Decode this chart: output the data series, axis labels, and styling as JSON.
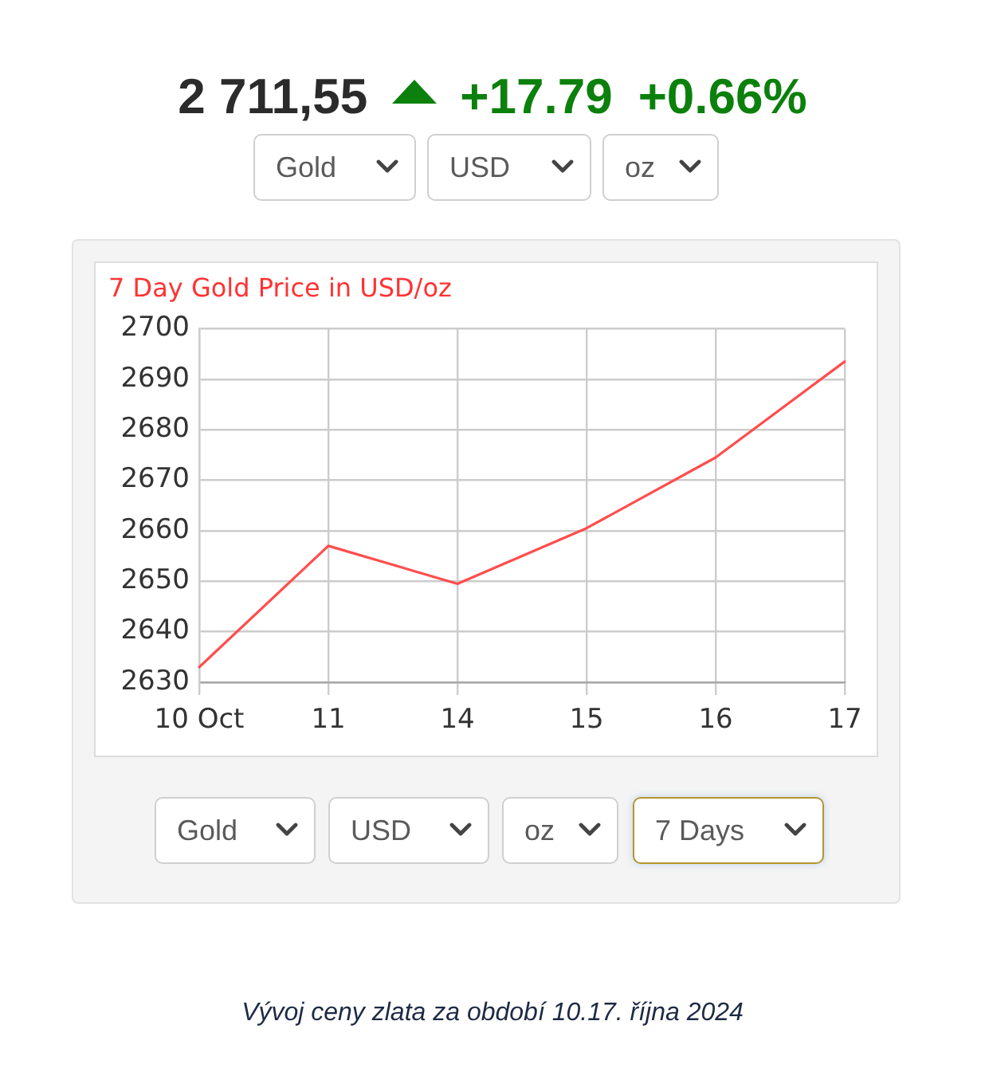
{
  "chart_data": {
    "type": "line",
    "title": "7 Day Gold Price in USD/oz",
    "categories": [
      "10 Oct",
      "11",
      "14",
      "15",
      "16",
      "17"
    ],
    "values": [
      2633,
      2657,
      2649.5,
      2660.5,
      2674.5,
      2693.5
    ],
    "color": "#ff4d4d",
    "ylim": [
      2630,
      2700
    ],
    "yticks": [
      2630,
      2640,
      2650,
      2660,
      2670,
      2680,
      2690,
      2700
    ],
    "grid": true,
    "marker": "none",
    "legend": false,
    "annotations": [
      "2 711,55",
      "+17.79",
      "+0.66%",
      "Gold",
      "USD",
      "oz",
      "Gold",
      "USD",
      "oz",
      "7 Days",
      "Vývoj ceny zlata za období 10.17. října 2024"
    ]
  }
}
